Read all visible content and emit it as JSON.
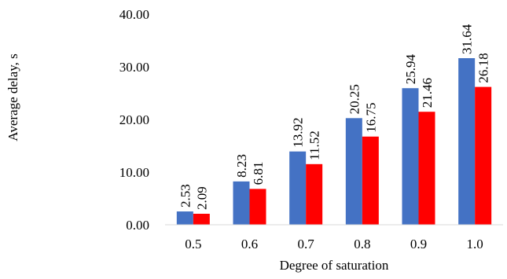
{
  "chart_data": {
    "type": "bar",
    "title": "",
    "xlabel": "Degree of saturation",
    "ylabel": "Average delay, s",
    "categories": [
      "0.5",
      "0.6",
      "0.7",
      "0.8",
      "0.9",
      "1.0"
    ],
    "series": [
      {
        "values": [
          2.53,
          8.23,
          13.92,
          20.25,
          25.94,
          31.64
        ],
        "color": "#4472C4"
      },
      {
        "values": [
          2.09,
          6.81,
          11.52,
          16.75,
          21.46,
          26.18
        ],
        "color": "#FF0000"
      }
    ],
    "data_labels": [
      [
        "2.53",
        "8.23",
        "13.92",
        "20.25",
        "25.94",
        "31.64"
      ],
      [
        "2.09",
        "6.81",
        "11.52",
        "16.75",
        "21.46",
        "26.18"
      ]
    ],
    "y_ticks": [
      "0.00",
      "10.00",
      "20.00",
      "30.00",
      "40.00"
    ],
    "ylim": [
      0,
      40
    ],
    "grid": false,
    "legend": "none"
  }
}
